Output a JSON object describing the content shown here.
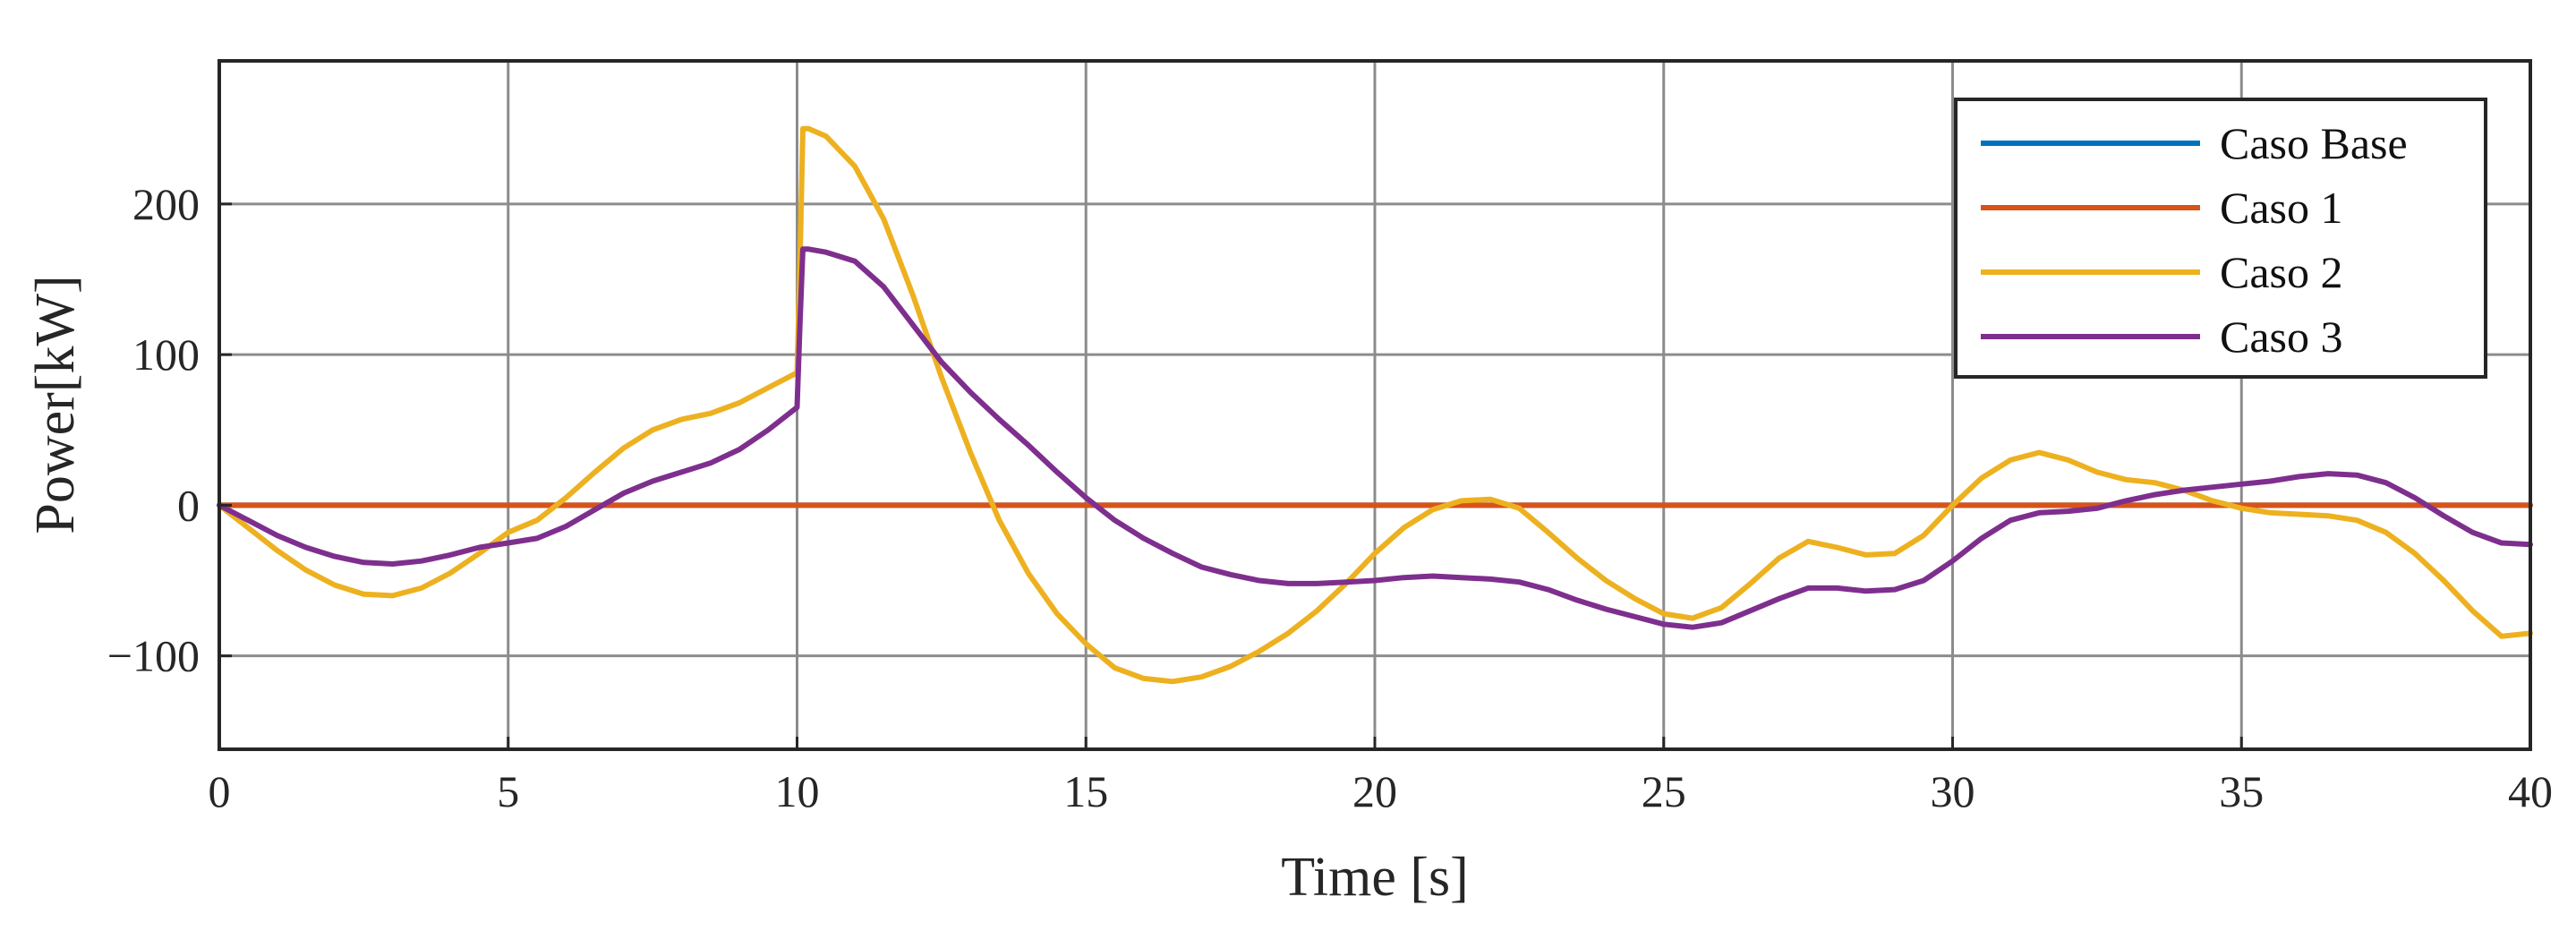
{
  "chart_data": {
    "type": "line",
    "title": "",
    "xlabel": "Time [s]",
    "ylabel": "Power[kW]",
    "xlim": [
      0,
      40
    ],
    "ylim": [
      -162,
      295
    ],
    "xticks": [
      0,
      5,
      10,
      15,
      20,
      25,
      30,
      35,
      40
    ],
    "yticks": [
      -100,
      0,
      100,
      200
    ],
    "xtick_labels": [
      "0",
      "5",
      "10",
      "15",
      "20",
      "25",
      "30",
      "35",
      "40"
    ],
    "ytick_labels": [
      "−100",
      "0",
      "100",
      "200"
    ],
    "grid": true,
    "legend_position": "top-right",
    "series": [
      {
        "name": "Caso Base",
        "color": "#0072BD",
        "x": [
          0,
          40
        ],
        "y": [
          0,
          0
        ]
      },
      {
        "name": "Caso 1",
        "color": "#D95319",
        "x": [
          0,
          40
        ],
        "y": [
          0,
          0
        ]
      },
      {
        "name": "Caso 2",
        "color": "#EDB120",
        "x": [
          0,
          0.5,
          1,
          1.5,
          2,
          2.5,
          3,
          3.5,
          4,
          4.5,
          5,
          5.5,
          6,
          6.5,
          7,
          7.5,
          8,
          8.5,
          9,
          9.5,
          10,
          10.05,
          10.1,
          10.2,
          10.5,
          11,
          11.5,
          12,
          12.5,
          13,
          13.5,
          14,
          14.5,
          15,
          15.5,
          16,
          16.5,
          17,
          17.5,
          18,
          18.5,
          19,
          19.5,
          20,
          20.5,
          21,
          21.5,
          22,
          22.5,
          23,
          23.5,
          24,
          24.5,
          25,
          25.5,
          26,
          26.5,
          27,
          27.5,
          28,
          28.5,
          29,
          29.5,
          30,
          30.5,
          31,
          31.5,
          32,
          32.5,
          33,
          33.5,
          34,
          34.5,
          35,
          35.5,
          36,
          36.5,
          37,
          37.5,
          38,
          38.5,
          39,
          39.5,
          40
        ],
        "y": [
          0,
          -15,
          -30,
          -43,
          -53,
          -59,
          -60,
          -55,
          -45,
          -32,
          -18,
          -10,
          5,
          22,
          38,
          50,
          57,
          61,
          68,
          78,
          88,
          160,
          250,
          250,
          245,
          225,
          190,
          140,
          85,
          35,
          -10,
          -45,
          -72,
          -92,
          -108,
          -115,
          -117,
          -114,
          -107,
          -97,
          -85,
          -70,
          -52,
          -32,
          -15,
          -3,
          3,
          4,
          -2,
          -18,
          -35,
          -50,
          -62,
          -72,
          -75,
          -68,
          -52,
          -35,
          -24,
          -28,
          -33,
          -32,
          -20,
          0,
          18,
          30,
          35,
          30,
          22,
          17,
          15,
          10,
          3,
          -2,
          -5,
          -6,
          -7,
          -10,
          -18,
          -32,
          -50,
          -70,
          -87,
          -85
        ]
      },
      {
        "name": "Caso 3",
        "color": "#7E2F8E",
        "x": [
          0,
          0.5,
          1,
          1.5,
          2,
          2.5,
          3,
          3.5,
          4,
          4.5,
          5,
          5.5,
          6,
          6.5,
          7,
          7.5,
          8,
          8.5,
          9,
          9.5,
          10,
          10.05,
          10.1,
          10.2,
          10.5,
          11,
          11.5,
          12,
          12.5,
          13,
          13.5,
          14,
          14.5,
          15,
          15.5,
          16,
          16.5,
          17,
          17.5,
          18,
          18.5,
          19,
          19.5,
          20,
          20.5,
          21,
          21.5,
          22,
          22.5,
          23,
          23.5,
          24,
          24.5,
          25,
          25.5,
          26,
          26.5,
          27,
          27.5,
          28,
          28.5,
          29,
          29.5,
          30,
          30.5,
          31,
          31.5,
          32,
          32.5,
          33,
          33.5,
          34,
          34.5,
          35,
          35.5,
          36,
          36.5,
          37,
          37.5,
          38,
          38.5,
          39,
          39.5,
          40
        ],
        "y": [
          0,
          -10,
          -20,
          -28,
          -34,
          -38,
          -39,
          -37,
          -33,
          -28,
          -25,
          -22,
          -14,
          -3,
          8,
          16,
          22,
          28,
          37,
          50,
          65,
          120,
          170,
          170,
          168,
          162,
          145,
          120,
          95,
          75,
          57,
          40,
          22,
          5,
          -10,
          -22,
          -32,
          -41,
          -46,
          -50,
          -52,
          -52,
          -51,
          -50,
          -48,
          -47,
          -48,
          -49,
          -51,
          -56,
          -63,
          -69,
          -74,
          -79,
          -81,
          -78,
          -70,
          -62,
          -55,
          -55,
          -57,
          -56,
          -50,
          -37,
          -22,
          -10,
          -5,
          -4,
          -2,
          3,
          7,
          10,
          12,
          14,
          16,
          19,
          21,
          20,
          15,
          5,
          -7,
          -18,
          -25,
          -26
        ]
      }
    ]
  }
}
